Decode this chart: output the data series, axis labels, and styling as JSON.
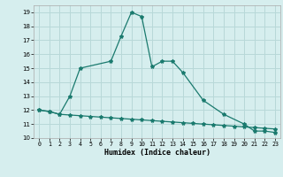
{
  "series1_x": [
    0,
    1,
    2,
    3,
    4,
    7,
    8,
    9,
    10,
    11,
    12,
    13,
    14,
    16,
    18,
    20,
    21,
    22,
    23
  ],
  "series1_y": [
    12.0,
    11.9,
    11.7,
    13.0,
    15.0,
    15.5,
    17.3,
    19.0,
    18.7,
    15.1,
    15.5,
    15.5,
    14.7,
    12.7,
    11.7,
    11.0,
    10.5,
    10.5,
    10.4
  ],
  "series2_x": [
    0,
    1,
    2,
    3,
    4,
    5,
    6,
    7,
    8,
    9,
    10,
    11,
    12,
    13,
    14,
    15,
    16,
    17,
    18,
    19,
    20,
    21,
    22,
    23
  ],
  "series2_y": [
    12.0,
    11.9,
    11.7,
    11.65,
    11.6,
    11.55,
    11.5,
    11.45,
    11.4,
    11.35,
    11.3,
    11.25,
    11.2,
    11.15,
    11.1,
    11.05,
    11.0,
    10.95,
    10.9,
    10.85,
    10.8,
    10.75,
    10.7,
    10.65
  ],
  "bg_color": "#d6eeee",
  "grid_color": "#b8d8d8",
  "line_color": "#1a7a6e",
  "xlabel": "Humidex (Indice chaleur)",
  "ylim": [
    10,
    19.5
  ],
  "yticks": [
    10,
    11,
    12,
    13,
    14,
    15,
    16,
    17,
    18,
    19
  ],
  "xlim": [
    -0.5,
    23.5
  ],
  "xticks": [
    0,
    1,
    2,
    3,
    4,
    5,
    6,
    7,
    8,
    9,
    10,
    11,
    12,
    13,
    14,
    15,
    16,
    17,
    18,
    19,
    20,
    21,
    22,
    23
  ]
}
